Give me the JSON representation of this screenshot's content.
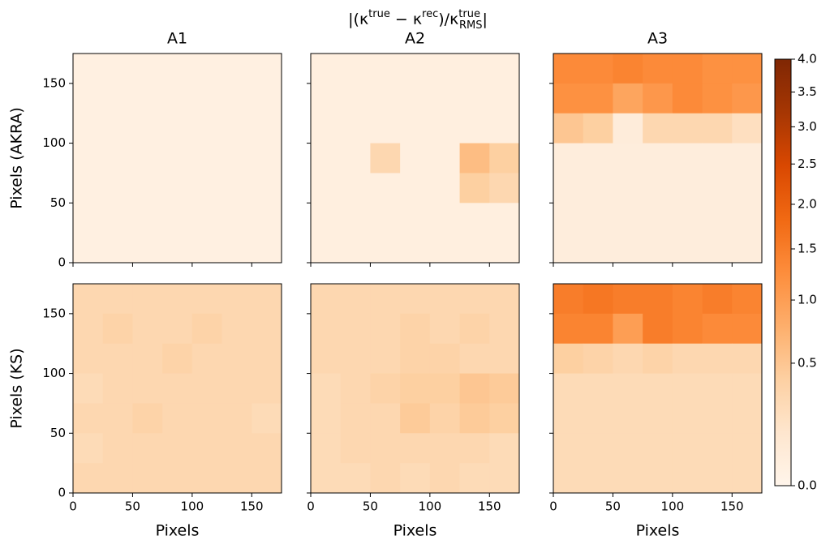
{
  "chart_data": {
    "type": "heatmap",
    "title_parts": [
      "|(κ",
      "true",
      " − κ",
      "rec",
      ")/κ",
      "true",
      "RMS",
      "|"
    ],
    "columns": [
      "A1",
      "A2",
      "A3"
    ],
    "rows": [
      "Pixels (AKRA)",
      "Pixels (KS)"
    ],
    "xlabel": "Pixels",
    "xlim": [
      0,
      175
    ],
    "ylim": [
      0,
      175
    ],
    "xticks": [
      0,
      50,
      100,
      150
    ],
    "yticks": [
      0,
      50,
      100,
      150
    ],
    "panels": [
      {
        "z": [
          [
            0.02,
            0.02,
            0.02,
            0.02,
            0.02,
            0.02,
            0.02
          ],
          [
            0.02,
            0.02,
            0.02,
            0.02,
            0.02,
            0.02,
            0.02
          ],
          [
            0.02,
            0.02,
            0.02,
            0.02,
            0.02,
            0.02,
            0.02
          ],
          [
            0.02,
            0.02,
            0.02,
            0.02,
            0.02,
            0.02,
            0.02
          ],
          [
            0.02,
            0.02,
            0.02,
            0.02,
            0.02,
            0.02,
            0.02
          ],
          [
            0.02,
            0.02,
            0.02,
            0.02,
            0.02,
            0.02,
            0.02
          ],
          [
            0.02,
            0.02,
            0.02,
            0.02,
            0.02,
            0.02,
            0.02
          ]
        ]
      },
      {
        "z": [
          [
            0.03,
            0.03,
            0.03,
            0.03,
            0.03,
            0.03,
            0.03
          ],
          [
            0.03,
            0.03,
            0.03,
            0.03,
            0.03,
            0.03,
            0.03
          ],
          [
            0.03,
            0.03,
            0.03,
            0.03,
            0.03,
            0.03,
            0.03
          ],
          [
            0.03,
            0.03,
            0.3,
            0.03,
            0.03,
            0.6,
            0.4
          ],
          [
            0.03,
            0.03,
            0.03,
            0.03,
            0.03,
            0.4,
            0.3
          ],
          [
            0.03,
            0.03,
            0.03,
            0.03,
            0.03,
            0.03,
            0.03
          ],
          [
            0.03,
            0.03,
            0.03,
            0.03,
            0.03,
            0.03,
            0.03
          ]
        ]
      },
      {
        "z": [
          [
            1.3,
            1.3,
            1.4,
            1.3,
            1.3,
            1.2,
            1.2
          ],
          [
            1.2,
            1.2,
            0.9,
            1.1,
            1.3,
            1.2,
            1.1
          ],
          [
            0.5,
            0.4,
            0.05,
            0.3,
            0.3,
            0.3,
            0.2
          ],
          [
            0.04,
            0.04,
            0.04,
            0.04,
            0.04,
            0.04,
            0.04
          ],
          [
            0.04,
            0.04,
            0.04,
            0.04,
            0.04,
            0.04,
            0.04
          ],
          [
            0.04,
            0.04,
            0.04,
            0.04,
            0.04,
            0.04,
            0.04
          ],
          [
            0.04,
            0.04,
            0.04,
            0.04,
            0.04,
            0.04,
            0.04
          ]
        ]
      },
      {
        "z": [
          [
            0.3,
            0.3,
            0.3,
            0.3,
            0.3,
            0.3,
            0.3
          ],
          [
            0.3,
            0.35,
            0.3,
            0.3,
            0.35,
            0.3,
            0.3
          ],
          [
            0.3,
            0.3,
            0.3,
            0.35,
            0.3,
            0.3,
            0.3
          ],
          [
            0.25,
            0.3,
            0.3,
            0.3,
            0.3,
            0.3,
            0.3
          ],
          [
            0.3,
            0.3,
            0.35,
            0.3,
            0.3,
            0.3,
            0.25
          ],
          [
            0.25,
            0.3,
            0.3,
            0.3,
            0.3,
            0.3,
            0.3
          ],
          [
            0.3,
            0.3,
            0.3,
            0.3,
            0.3,
            0.3,
            0.3
          ]
        ]
      },
      {
        "z": [
          [
            0.3,
            0.3,
            0.3,
            0.3,
            0.3,
            0.3,
            0.3
          ],
          [
            0.3,
            0.3,
            0.3,
            0.35,
            0.3,
            0.35,
            0.3
          ],
          [
            0.3,
            0.3,
            0.3,
            0.35,
            0.35,
            0.3,
            0.3
          ],
          [
            0.25,
            0.3,
            0.35,
            0.4,
            0.4,
            0.5,
            0.45
          ],
          [
            0.25,
            0.3,
            0.3,
            0.45,
            0.35,
            0.45,
            0.4
          ],
          [
            0.25,
            0.3,
            0.3,
            0.3,
            0.3,
            0.3,
            0.25
          ],
          [
            0.25,
            0.25,
            0.3,
            0.25,
            0.3,
            0.25,
            0.25
          ]
        ]
      },
      {
        "z": [
          [
            1.5,
            1.6,
            1.5,
            1.5,
            1.4,
            1.5,
            1.4
          ],
          [
            1.4,
            1.4,
            1.0,
            1.5,
            1.4,
            1.3,
            1.3
          ],
          [
            0.4,
            0.35,
            0.3,
            0.35,
            0.3,
            0.3,
            0.3
          ],
          [
            0.25,
            0.25,
            0.25,
            0.25,
            0.25,
            0.25,
            0.25
          ],
          [
            0.25,
            0.25,
            0.25,
            0.25,
            0.25,
            0.25,
            0.25
          ],
          [
            0.25,
            0.25,
            0.25,
            0.25,
            0.25,
            0.25,
            0.25
          ],
          [
            0.25,
            0.25,
            0.25,
            0.25,
            0.25,
            0.25,
            0.25
          ]
        ]
      }
    ],
    "colorbar": {
      "lim": [
        0,
        4
      ],
      "gamma": 0.6,
      "colormap": [
        "#fff5eb",
        "#fee6ce",
        "#fdd0a2",
        "#fdae6b",
        "#fd8d3c",
        "#f16913",
        "#d94801",
        "#a63603",
        "#7f2704"
      ],
      "ticks": [
        {
          "value": 0,
          "label": "0.0"
        },
        0.5,
        {
          "value": 1,
          "label": "1.0"
        },
        1.5,
        {
          "value": 2,
          "label": "2.0"
        },
        2.5,
        {
          "value": 3,
          "label": "3.0"
        },
        3.5,
        {
          "value": 4,
          "label": "4.0"
        }
      ]
    }
  }
}
